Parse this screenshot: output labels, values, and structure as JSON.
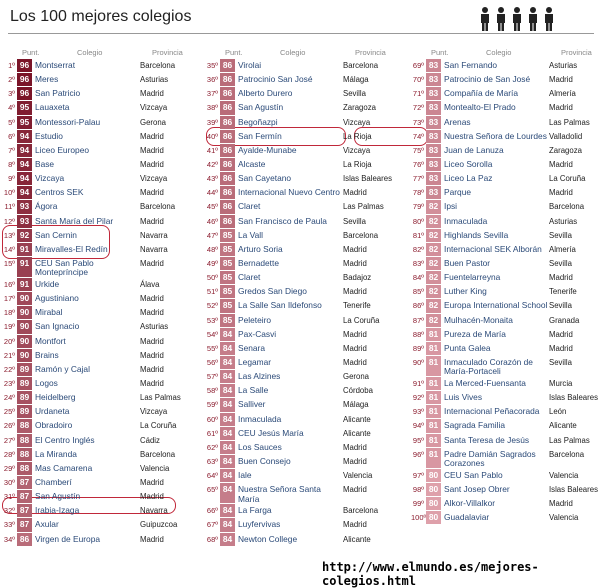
{
  "title": "Los 100 mejores colegios",
  "url": "http://www.elmundo.es/mejores-colegios.html",
  "columns": [
    {
      "headers": [
        "Punt.",
        "Colegio",
        "Provincia"
      ],
      "rows": [
        [
          "1º",
          96,
          "Montserrat",
          "Barcelona"
        ],
        [
          "2º",
          96,
          "Meres",
          "Asturias"
        ],
        [
          "3º",
          96,
          "San Patricio",
          "Madrid"
        ],
        [
          "4º",
          95,
          "Lauaxeta",
          "Vizcaya"
        ],
        [
          "5º",
          95,
          "Montessori-Palau",
          "Gerona"
        ],
        [
          "6º",
          94,
          "Estudio",
          "Madrid"
        ],
        [
          "7º",
          94,
          "Liceo Europeo",
          "Madrid"
        ],
        [
          "8º",
          94,
          "Base",
          "Madrid"
        ],
        [
          "9º",
          94,
          "Vizcaya",
          "Vizcaya"
        ],
        [
          "10º",
          94,
          "Centros SEK",
          "Madrid"
        ],
        [
          "11º",
          93,
          "Ágora",
          "Barcelona"
        ],
        [
          "12º",
          93,
          "Santa María del Pilar",
          "Madrid"
        ],
        [
          "13º",
          92,
          "San Cernin",
          "Navarra"
        ],
        [
          "14º",
          91,
          "Miravalles-El Redín",
          "Navarra"
        ],
        [
          "15º",
          91,
          "CEU San Pablo Montepríncipe",
          "Madrid"
        ],
        [
          "16º",
          91,
          "Urkide",
          "Álava"
        ],
        [
          "17º",
          90,
          "Agustiniano",
          "Madrid"
        ],
        [
          "18º",
          90,
          "Mirabal",
          "Madrid"
        ],
        [
          "19º",
          90,
          "San Ignacio",
          "Asturias"
        ],
        [
          "20º",
          90,
          "Montfort",
          "Madrid"
        ],
        [
          "21º",
          90,
          "Brains",
          "Madrid"
        ],
        [
          "22º",
          89,
          "Ramón y Cajal",
          "Madrid"
        ],
        [
          "23º",
          89,
          "Logos",
          "Madrid"
        ],
        [
          "24º",
          89,
          "Heidelberg",
          "Las Palmas"
        ],
        [
          "25º",
          89,
          "Urdaneta",
          "Vizcaya"
        ],
        [
          "26º",
          88,
          "Obradoiro",
          "La Coruña"
        ],
        [
          "27º",
          88,
          "El Centro Inglés",
          "Cádiz"
        ],
        [
          "28º",
          88,
          "La Miranda",
          "Barcelona"
        ],
        [
          "29º",
          88,
          "Mas Camarena",
          "Valencia"
        ],
        [
          "30º",
          87,
          "Chamberí",
          "Madrid"
        ],
        [
          "31º",
          87,
          "San Agustín",
          "Madrid"
        ],
        [
          "32º",
          87,
          "Irabia-Izaga",
          "Navarra"
        ],
        [
          "33º",
          87,
          "Axular",
          "Guipuzcoa"
        ],
        [
          "34º",
          86,
          "Virgen de Europa",
          "Madrid"
        ]
      ]
    },
    {
      "headers": [
        "Punt.",
        "Colegio",
        "Provincia"
      ],
      "rows": [
        [
          "35º",
          86,
          "Virolai",
          "Barcelona"
        ],
        [
          "36º",
          86,
          "Patrocinio San José",
          "Málaga"
        ],
        [
          "37º",
          86,
          "Alberto Durero",
          "Sevilla"
        ],
        [
          "38º",
          86,
          "San Agustín",
          "Zaragoza"
        ],
        [
          "39º",
          86,
          "Begoñazpi",
          "Vizcaya"
        ],
        [
          "40º",
          86,
          "San Fermín",
          "La Rioja"
        ],
        [
          "41º",
          86,
          "Ayalde-Munabe",
          "Vizcaya"
        ],
        [
          "42º",
          86,
          "Alcaste",
          "La Rioja"
        ],
        [
          "43º",
          86,
          "San Cayetano",
          "Islas Baleares"
        ],
        [
          "44º",
          86,
          "Internacional Nuevo Centro",
          "Madrid"
        ],
        [
          "45º",
          86,
          "Claret",
          "Las Palmas"
        ],
        [
          "46º",
          86,
          "San Francisco de Paula",
          "Sevilla"
        ],
        [
          "47º",
          85,
          "La Vall",
          "Barcelona"
        ],
        [
          "48º",
          85,
          "Arturo Soria",
          "Madrid"
        ],
        [
          "49º",
          85,
          "Bernadette",
          "Madrid"
        ],
        [
          "50º",
          85,
          "Claret",
          "Badajoz"
        ],
        [
          "51º",
          85,
          "Gredos San Diego",
          "Madrid"
        ],
        [
          "52º",
          85,
          "La Salle San Ildefonso",
          "Tenerife"
        ],
        [
          "53º",
          85,
          "Peleteiro",
          "La Coruña"
        ],
        [
          "54º",
          84,
          "Pax-Casvi",
          "Madrid"
        ],
        [
          "55º",
          84,
          "Senara",
          "Madrid"
        ],
        [
          "56º",
          84,
          "Legamar",
          "Madrid"
        ],
        [
          "57º",
          84,
          "Las Alzines",
          "Gerona"
        ],
        [
          "58º",
          84,
          "La Salle",
          "Córdoba"
        ],
        [
          "59º",
          84,
          "Salliver",
          "Málaga"
        ],
        [
          "60º",
          84,
          "Inmaculada",
          "Alicante"
        ],
        [
          "61º",
          84,
          "CEU Jesús María",
          "Alicante"
        ],
        [
          "62º",
          84,
          "Los Sauces",
          "Madrid"
        ],
        [
          "63º",
          84,
          "Buen Consejo",
          "Madrid"
        ],
        [
          "64º",
          84,
          "Iale",
          "Valencia"
        ],
        [
          "65º",
          84,
          "Nuestra Señora Santa María",
          "Madrid"
        ],
        [
          "66º",
          84,
          "La Farga",
          "Barcelona"
        ],
        [
          "67º",
          84,
          "Luyfervivas",
          "Madrid"
        ],
        [
          "68º",
          84,
          "Newton College",
          "Alicante"
        ]
      ]
    },
    {
      "headers": [
        "Punt.",
        "Colegio",
        "Provincia"
      ],
      "rows": [
        [
          "69º",
          83,
          "San Fernando",
          "Asturias"
        ],
        [
          "70º",
          83,
          "Patrocinio de San José",
          "Madrid"
        ],
        [
          "71º",
          83,
          "Compañía de María",
          "Almería"
        ],
        [
          "72º",
          83,
          "Montealto-El Prado",
          "Madrid"
        ],
        [
          "73º",
          83,
          "Arenas",
          "Las Palmas"
        ],
        [
          "74º",
          83,
          "Nuestra Señora de Lourdes",
          "Valladolid"
        ],
        [
          "75º",
          83,
          "Juan de Lanuza",
          "Zaragoza"
        ],
        [
          "76º",
          83,
          "Liceo Sorolla",
          "Madrid"
        ],
        [
          "77º",
          83,
          "Liceo La Paz",
          "La Coruña"
        ],
        [
          "78º",
          83,
          "Parque",
          "Madrid"
        ],
        [
          "79º",
          82,
          "Ipsi",
          "Barcelona"
        ],
        [
          "80º",
          82,
          "Inmaculada",
          "Asturias"
        ],
        [
          "81º",
          82,
          "Highlands Sevilla",
          "Sevilla"
        ],
        [
          "82º",
          82,
          "Internacional SEK Alborán",
          "Almería"
        ],
        [
          "83º",
          82,
          "Buen Pastor",
          "Sevilla"
        ],
        [
          "84º",
          82,
          "Fuentelarreyna",
          "Madrid"
        ],
        [
          "85º",
          82,
          "Luther King",
          "Tenerife"
        ],
        [
          "86º",
          82,
          "Europa International School",
          "Sevilla"
        ],
        [
          "87º",
          82,
          "Mulhacén-Monaita",
          "Granada"
        ],
        [
          "88º",
          81,
          "Pureza de María",
          "Madrid"
        ],
        [
          "89º",
          81,
          "Punta Galea",
          "Madrid"
        ],
        [
          "90º",
          81,
          "Inmaculado Corazón de María-Portaceli",
          "Sevilla"
        ],
        [
          "91º",
          81,
          "La Merced-Fuensanta",
          "Murcia"
        ],
        [
          "92º",
          81,
          "Luis Vives",
          "Islas Baleares"
        ],
        [
          "93º",
          81,
          "Internacional Peñacorada",
          "León"
        ],
        [
          "94º",
          81,
          "Sagrada Familia",
          "Alicante"
        ],
        [
          "95º",
          81,
          "Santa Teresa de Jesús",
          "Las Palmas"
        ],
        [
          "96º",
          81,
          "Padre Damián Sagrados Corazones",
          "Barcelona"
        ],
        [
          "97º",
          80,
          "CEU San Pablo",
          "Valencia"
        ],
        [
          "98º",
          80,
          "Sant Josep Obrer",
          "Islas Baleares"
        ],
        [
          "99º",
          80,
          "Alkor-Villalkor",
          "Madrid"
        ],
        [
          "100º",
          80,
          "Guadalaviar",
          "Valencia"
        ]
      ]
    }
  ]
}
